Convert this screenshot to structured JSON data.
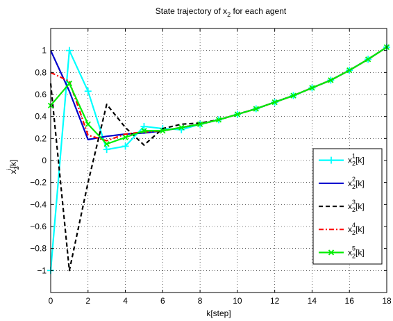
{
  "chart_data": {
    "type": "line",
    "title": "State trajectory of x",
    "title_sub": "2",
    "title_suffix": " for each agent",
    "xlabel": "k[step]",
    "ylabel_main": "x",
    "ylabel_sub": "2",
    "ylabel_sup": "i",
    "ylabel_suffix": "[k]",
    "xlim": [
      0,
      18
    ],
    "ylim": [
      -1.2,
      1.2
    ],
    "xticks": [
      0,
      2,
      4,
      6,
      8,
      10,
      12,
      14,
      16,
      18
    ],
    "yticks": [
      -1,
      -0.8,
      -0.6,
      -0.4,
      -0.2,
      0,
      0.2,
      0.4,
      0.6,
      0.8,
      1
    ],
    "ytick_labels": [
      "−1",
      "−0.8",
      "−0.6",
      "−0.4",
      "−0.2",
      "0",
      "0.2",
      "0.4",
      "0.6",
      "0.8",
      "1"
    ],
    "grid": true,
    "legend_position": "right",
    "x": [
      0,
      1,
      2,
      3,
      4,
      5,
      6,
      7,
      8,
      9,
      10,
      11,
      12,
      13,
      14,
      15,
      16,
      17,
      18
    ],
    "series": [
      {
        "name": "x",
        "sub": "2",
        "sup": "1",
        "suffix": "[k]",
        "color": "#00ffff",
        "dash": "",
        "marker": "plus",
        "values": [
          -1.0,
          1.0,
          0.63,
          0.1,
          0.13,
          0.31,
          0.29,
          0.28,
          0.33,
          0.37,
          0.42,
          0.47,
          0.53,
          0.59,
          0.66,
          0.73,
          0.82,
          0.92,
          1.03
        ]
      },
      {
        "name": "x",
        "sub": "2",
        "sup": "2",
        "suffix": "[k]",
        "color": "#0000cc",
        "dash": "",
        "marker": "none",
        "values": [
          1.0,
          0.63,
          0.19,
          0.22,
          0.24,
          0.25,
          0.27,
          0.3,
          0.33,
          0.37,
          0.42,
          0.47,
          0.53,
          0.59,
          0.66,
          0.73,
          0.82,
          0.92,
          1.03
        ]
      },
      {
        "name": "x",
        "sub": "2",
        "sup": "3",
        "suffix": "[k]",
        "color": "#000000",
        "dash": "6,4",
        "marker": "none",
        "values": [
          0.7,
          -1.0,
          -0.2,
          0.51,
          0.3,
          0.14,
          0.29,
          0.33,
          0.34,
          0.37,
          0.42,
          0.47,
          0.53,
          0.59,
          0.66,
          0.73,
          0.82,
          0.92,
          1.03
        ]
      },
      {
        "name": "x",
        "sub": "2",
        "sup": "4",
        "suffix": "[k]",
        "color": "#ff0000",
        "dash": "7,3,2,3",
        "marker": "none",
        "values": [
          0.8,
          0.72,
          0.23,
          0.18,
          0.24,
          0.26,
          0.27,
          0.3,
          0.33,
          0.37,
          0.42,
          0.47,
          0.53,
          0.59,
          0.66,
          0.73,
          0.82,
          0.92,
          1.03
        ]
      },
      {
        "name": "x",
        "sub": "2",
        "sup": "5",
        "suffix": "[k]",
        "color": "#00ee00",
        "dash": "",
        "marker": "x",
        "values": [
          0.5,
          0.7,
          0.33,
          0.15,
          0.21,
          0.27,
          0.27,
          0.3,
          0.33,
          0.37,
          0.42,
          0.47,
          0.53,
          0.59,
          0.66,
          0.73,
          0.82,
          0.92,
          1.03
        ]
      }
    ]
  }
}
